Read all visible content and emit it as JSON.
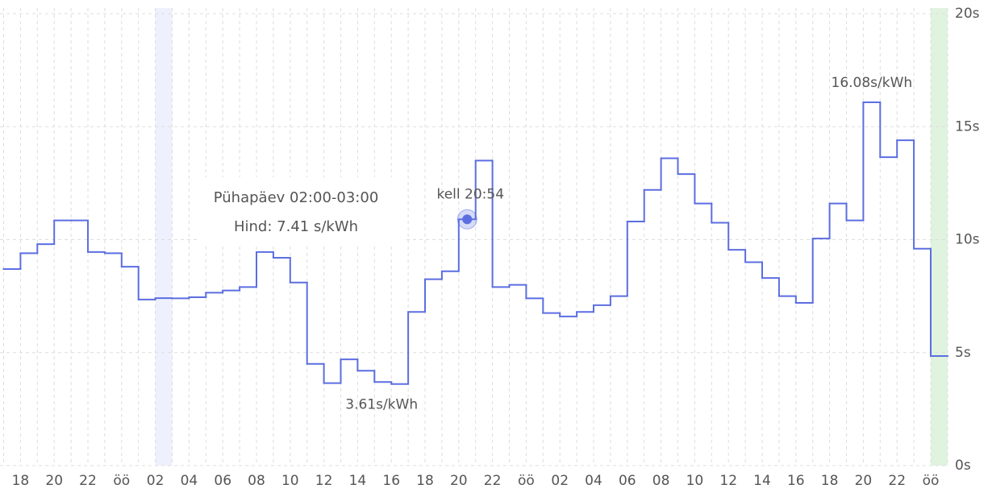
{
  "chart_data": {
    "type": "step",
    "categories": [
      null,
      "18",
      null,
      "20",
      null,
      "22",
      null,
      "öö",
      null,
      "02",
      null,
      "04",
      null,
      "06",
      null,
      "08",
      null,
      "10",
      null,
      "12",
      null,
      "14",
      null,
      "16",
      null,
      "18",
      null,
      "20",
      null,
      "22",
      null,
      "öö",
      null,
      "02",
      null,
      "04",
      null,
      "06",
      null,
      "08",
      null,
      "10",
      null,
      "12",
      null,
      "14",
      null,
      "16",
      null,
      "18",
      null,
      "20",
      null,
      "22",
      null,
      "öö"
    ],
    "series": [
      {
        "color": "#5b6ee1",
        "values": [
          8.7,
          9.4,
          9.8,
          10.85,
          10.85,
          9.45,
          9.4,
          8.8,
          7.35,
          7.41,
          7.4,
          7.45,
          7.65,
          7.75,
          7.9,
          9.45,
          9.2,
          8.1,
          4.5,
          3.65,
          4.7,
          4.2,
          3.7,
          3.61,
          6.8,
          8.25,
          8.6,
          10.9,
          13.5,
          7.9,
          8.0,
          7.4,
          6.75,
          6.6,
          6.8,
          7.1,
          7.5,
          10.8,
          12.2,
          13.6,
          12.9,
          11.6,
          10.75,
          9.55,
          9.0,
          8.3,
          7.5,
          7.2,
          10.05,
          11.6,
          10.85,
          16.08,
          13.65,
          14.4,
          9.6,
          4.85
        ]
      }
    ],
    "ylim": [
      0,
      20
    ],
    "yticks": [
      {
        "value": 0,
        "label": "0s"
      },
      {
        "value": 5,
        "label": "5s"
      },
      {
        "value": 10,
        "label": "10s"
      },
      {
        "value": 15,
        "label": "15s"
      },
      {
        "value": 20,
        "label": "20s"
      }
    ],
    "grid": true,
    "max_label": "16.08s/kWh",
    "min_label": "3.61s/kWh",
    "marker_label": "kell 20:54",
    "marker_index": 27,
    "hovered_index": 9,
    "highlight_index": 55,
    "hover_color": "#eef0fd",
    "highlight_color": "#dff3df",
    "tooltip": {
      "title": "Pühapäev 02:00-03:00",
      "text": "Hind: 7.41 s/kWh"
    }
  }
}
